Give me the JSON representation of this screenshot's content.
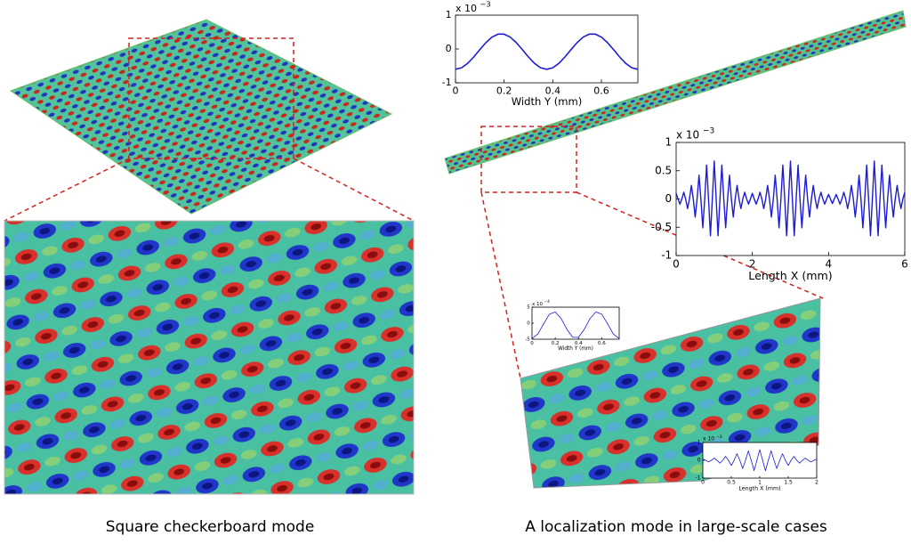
{
  "captions": [
    "Square checkerboard mode",
    "A localization mode in large-scale cases"
  ],
  "chart_data": [
    {
      "type": "line",
      "xlabel": "Width Y (mm)",
      "multiplier": "x 10",
      "multiplier_power": "−3",
      "color": "#1c1cd6",
      "x": [
        0,
        0.025,
        0.05,
        0.075,
        0.1,
        0.125,
        0.15,
        0.175,
        0.2,
        0.225,
        0.25,
        0.275,
        0.3,
        0.325,
        0.35,
        0.375,
        0.4,
        0.425,
        0.45,
        0.475,
        0.5,
        0.525,
        0.55,
        0.575,
        0.6,
        0.625,
        0.65,
        0.675,
        0.7,
        0.725,
        0.75
      ],
      "values": [
        -0.6,
        -0.555,
        -0.426,
        -0.237,
        -0.02,
        0.188,
        0.35,
        0.438,
        0.438,
        0.35,
        0.188,
        -0.02,
        -0.237,
        -0.426,
        -0.555,
        -0.6,
        -0.555,
        -0.426,
        -0.237,
        -0.02,
        0.188,
        0.35,
        0.438,
        0.438,
        0.35,
        0.188,
        -0.02,
        -0.237,
        -0.426,
        -0.555,
        -0.6
      ],
      "xlim": [
        0,
        0.75
      ],
      "xticks": [
        0,
        0.2,
        0.4,
        0.6
      ],
      "ylim": [
        -1,
        1
      ],
      "yticks": [
        -1,
        0,
        1
      ]
    },
    {
      "type": "line",
      "xlabel": "Length X (mm)",
      "multiplier": "x 10",
      "multiplier_power": "−3",
      "color": "#1c1cd6",
      "x": [
        0,
        0.05,
        0.1,
        0.15,
        0.2,
        0.25,
        0.3,
        0.35,
        0.4,
        0.45,
        0.5,
        0.55,
        0.6,
        0.65,
        0.7,
        0.75,
        0.8,
        0.85,
        0.9,
        0.95,
        1,
        1.05,
        1.1,
        1.15,
        1.2,
        1.25,
        1.3,
        1.35,
        1.4,
        1.45,
        1.5,
        1.55,
        1.6,
        1.65,
        1.7,
        1.75,
        1.8,
        1.85,
        1.9,
        1.95,
        2,
        2.05,
        2.1,
        2.15,
        2.2,
        2.25,
        2.3,
        2.35,
        2.4,
        2.45,
        2.5,
        2.55,
        2.6,
        2.65,
        2.7,
        2.75,
        2.8,
        2.85,
        2.9,
        2.95,
        3,
        3.05,
        3.1,
        3.15,
        3.2,
        3.25,
        3.3,
        3.35,
        3.4,
        3.45,
        3.5,
        3.55,
        3.6,
        3.65,
        3.7,
        3.75,
        3.8,
        3.85,
        3.9,
        3.95,
        4,
        4.05,
        4.1,
        4.15,
        4.2,
        4.25,
        4.3,
        4.35,
        4.4,
        4.45,
        4.5,
        4.55,
        4.6,
        4.65,
        4.7,
        4.75,
        4.8,
        4.85,
        4.9,
        4.95,
        5,
        5.05,
        5.1,
        5.15,
        5.2,
        5.25,
        5.3,
        5.35,
        5.4,
        5.45,
        5.5,
        5.55,
        5.6,
        5.65,
        5.7,
        5.75,
        5.8,
        5.85,
        5.9,
        5.95,
        6
      ],
      "values": [
        0.1,
        0,
        -0.09,
        0,
        0.12,
        0,
        -0.17,
        0,
        0.24,
        0,
        -0.32,
        0,
        0.42,
        0,
        -0.51,
        0,
        0.6,
        0,
        -0.65,
        0,
        0.67,
        0,
        -0.65,
        0,
        0.6,
        0,
        -0.51,
        0,
        0.42,
        0,
        -0.32,
        0,
        0.24,
        0,
        -0.17,
        0,
        0.12,
        0,
        -0.09,
        0,
        0.1,
        0,
        -0.09,
        0,
        0.12,
        0,
        -0.17,
        0,
        0.24,
        0,
        -0.32,
        0,
        0.42,
        0,
        -0.51,
        0,
        0.6,
        0,
        -0.65,
        0,
        0.67,
        0,
        -0.65,
        0,
        0.6,
        0,
        -0.51,
        0,
        0.42,
        0,
        -0.32,
        0,
        0.24,
        0,
        -0.17,
        0,
        0.12,
        0,
        -0.09,
        0,
        0.08,
        0,
        -0.08,
        0,
        0.08,
        0,
        -0.09,
        0,
        0.12,
        0,
        -0.17,
        0,
        0.24,
        0,
        -0.32,
        0,
        0.42,
        0,
        -0.51,
        0,
        0.6,
        0,
        -0.65,
        0,
        0.67,
        0,
        -0.65,
        0,
        0.6,
        0,
        -0.51,
        0,
        0.42,
        0,
        -0.32,
        0,
        0.24,
        0,
        -0.17,
        0,
        0.12
      ],
      "xlim": [
        0,
        6
      ],
      "xticks": [
        0,
        2,
        4,
        6
      ],
      "ylim": [
        -1,
        1
      ],
      "yticks": [
        -1,
        -0.5,
        0,
        0.5,
        1
      ]
    },
    {
      "type": "line",
      "xlabel": "Width Y (mm)",
      "multiplier": "x 10",
      "multiplier_power": "−4",
      "color": "#1c1cd6",
      "x": [
        0,
        0.05,
        0.1,
        0.15,
        0.2,
        0.25,
        0.3,
        0.35,
        0.4,
        0.45,
        0.5,
        0.55,
        0.6,
        0.65,
        0.7,
        0.75
      ],
      "values": [
        -4.8,
        -3.4,
        -0.2,
        2.8,
        3.5,
        1.5,
        -1.9,
        -4.4,
        -4.4,
        -1.9,
        1.5,
        3.5,
        2.8,
        -0.2,
        -3.4,
        -4.8
      ],
      "xlim": [
        0,
        0.75
      ],
      "xticks": [
        0,
        0.2,
        0.4,
        0.6
      ],
      "ylim": [
        -5,
        5
      ],
      "yticks": [
        -5,
        0,
        5
      ]
    },
    {
      "type": "line",
      "xlabel": "Length X (mm)",
      "multiplier": "x 10",
      "multiplier_power": "−3",
      "color": "#1c1cd6",
      "x": [
        0,
        0.05,
        0.1,
        0.15,
        0.2,
        0.25,
        0.3,
        0.35,
        0.4,
        0.45,
        0.5,
        0.55,
        0.6,
        0.65,
        0.7,
        0.75,
        0.8,
        0.85,
        0.9,
        0.95,
        1,
        1.05,
        1.1,
        1.15,
        1.2,
        1.25,
        1.3,
        1.35,
        1.4,
        1.45,
        1.5,
        1.55,
        1.6,
        1.65,
        1.7,
        1.75,
        1.8,
        1.85,
        1.9,
        1.95,
        2
      ],
      "values": [
        0.07,
        0,
        -0.09,
        0,
        0.12,
        0,
        -0.16,
        0,
        0.22,
        0,
        -0.29,
        0,
        0.37,
        0,
        -0.46,
        0,
        0.53,
        0,
        -0.58,
        0,
        0.6,
        0,
        -0.58,
        0,
        0.53,
        0,
        -0.46,
        0,
        0.37,
        0,
        -0.29,
        0,
        0.22,
        0,
        -0.16,
        0,
        0.12,
        0,
        -0.09,
        0,
        0.07
      ],
      "xlim": [
        0,
        2
      ],
      "xticks": [
        0,
        0.5,
        1,
        1.5,
        2
      ],
      "ylim": [
        -1,
        1
      ],
      "yticks": [
        -1,
        0,
        1
      ]
    }
  ]
}
